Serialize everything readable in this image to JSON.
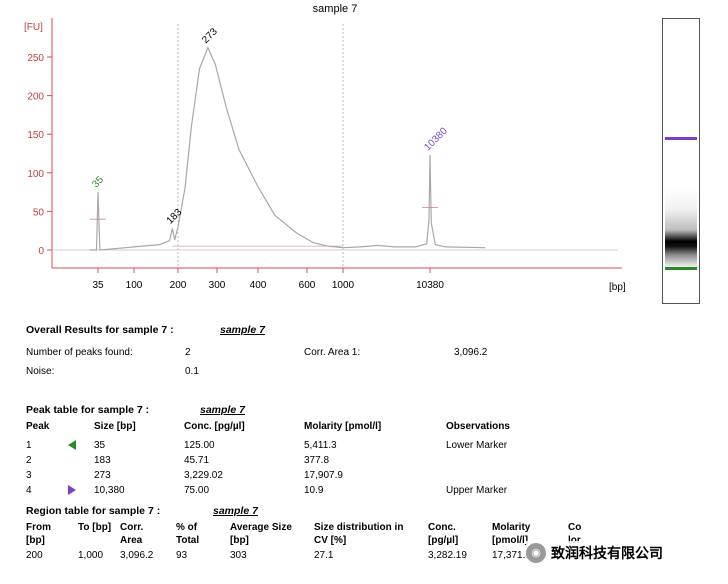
{
  "chart_data": {
    "type": "line",
    "title": "sample 7",
    "ylabel": "[FU]",
    "xlabel": "[bp]",
    "ylim": [
      -25,
      300
    ],
    "y_ticks": [
      "250",
      "200",
      "150",
      "100",
      "50",
      "0"
    ],
    "x_ticks": [
      "35",
      "100",
      "200",
      "300",
      "400",
      "600",
      "1000",
      "10380"
    ],
    "peak_labels": [
      {
        "label": "35",
        "size_bp": 35,
        "fu": 75,
        "color": "#2a8a2a"
      },
      {
        "label": "183",
        "size_bp": 183,
        "fu": 28,
        "color": "#000000"
      },
      {
        "label": "273",
        "size_bp": 273,
        "fu": 262,
        "color": "#000000"
      },
      {
        "label": "10380",
        "size_bp": 10380,
        "fu": 123,
        "color": "#7b4fc0"
      }
    ],
    "series": [
      {
        "values": [
          {
            "bp": 25,
            "fu": 0
          },
          {
            "bp": 33,
            "fu": 0
          },
          {
            "bp": 35,
            "fu": 75
          },
          {
            "bp": 37,
            "fu": 0
          },
          {
            "bp": 60,
            "fu": 2
          },
          {
            "bp": 100,
            "fu": 4
          },
          {
            "bp": 150,
            "fu": 7
          },
          {
            "bp": 175,
            "fu": 12
          },
          {
            "bp": 183,
            "fu": 28
          },
          {
            "bp": 190,
            "fu": 13
          },
          {
            "bp": 200,
            "fu": 30
          },
          {
            "bp": 215,
            "fu": 80
          },
          {
            "bp": 230,
            "fu": 160
          },
          {
            "bp": 250,
            "fu": 235
          },
          {
            "bp": 273,
            "fu": 262
          },
          {
            "bp": 295,
            "fu": 240
          },
          {
            "bp": 320,
            "fu": 185
          },
          {
            "bp": 350,
            "fu": 130
          },
          {
            "bp": 400,
            "fu": 82
          },
          {
            "bp": 460,
            "fu": 45
          },
          {
            "bp": 550,
            "fu": 22
          },
          {
            "bp": 650,
            "fu": 10
          },
          {
            "bp": 800,
            "fu": 5
          },
          {
            "bp": 1000,
            "fu": 3
          },
          {
            "bp": 1600,
            "fu": 4
          },
          {
            "bp": 2500,
            "fu": 6
          },
          {
            "bp": 4000,
            "fu": 4
          },
          {
            "bp": 7000,
            "fu": 4
          },
          {
            "bp": 9500,
            "fu": 8
          },
          {
            "bp": 10100,
            "fu": 40
          },
          {
            "bp": 10380,
            "fu": 123
          },
          {
            "bp": 10650,
            "fu": 35
          },
          {
            "bp": 11500,
            "fu": 7
          },
          {
            "bp": 14000,
            "fu": 4
          },
          {
            "bp": 30000,
            "fu": 3
          }
        ],
        "color": "#a8a8a8"
      }
    ],
    "colors": {
      "axis": "#d05050",
      "line": "#a8a8a8",
      "lower_marker": "#2a8a2a",
      "upper_marker": "#7b3fc4"
    }
  },
  "overall": {
    "title": "Overall Results for sample 7   :",
    "sample": "sample 7",
    "peaks_label": "Number of peaks found:",
    "peaks_value": "2",
    "corr_label": "Corr. Area 1:",
    "corr_value": "3,096.2",
    "noise_label": "Noise:",
    "noise_value": "0.1"
  },
  "peak_table": {
    "title": "Peak table for sample 7   :",
    "sample": "sample 7",
    "headers": [
      "Peak",
      "Size [bp]",
      "Conc. [pg/µl]",
      "Molarity [pmol/l]",
      "Observations"
    ],
    "rows": [
      [
        "1",
        "35",
        "125.00",
        "5,411.3",
        "Lower Marker"
      ],
      [
        "2",
        "183",
        "45.71",
        "377.8",
        ""
      ],
      [
        "3",
        "273",
        "3,229.02",
        "17,907.9",
        ""
      ],
      [
        "4",
        "10,380",
        "75.00",
        "10.9",
        "Upper Marker"
      ]
    ]
  },
  "region_table": {
    "title": "Region table for sample 7   :",
    "sample": "sample 7",
    "headers": [
      [
        "From",
        "[bp]"
      ],
      [
        "To [bp]",
        ""
      ],
      [
        "Corr.",
        "Area"
      ],
      [
        "% of",
        "Total"
      ],
      [
        "Average Size",
        "[bp]"
      ],
      [
        "Size distribution in",
        "CV [%]"
      ],
      [
        "Conc.",
        "[pg/µl]"
      ],
      [
        "Molarity",
        "[pmol/l]"
      ],
      [
        "Co",
        "lor"
      ]
    ],
    "row": [
      "200",
      "1,000",
      "3,096.2",
      "93",
      "303",
      "27.1",
      "3,282.19",
      "17,371.3"
    ]
  },
  "watermark": {
    "text": "致润科技有限公司",
    "icon": "wechat-icon"
  }
}
